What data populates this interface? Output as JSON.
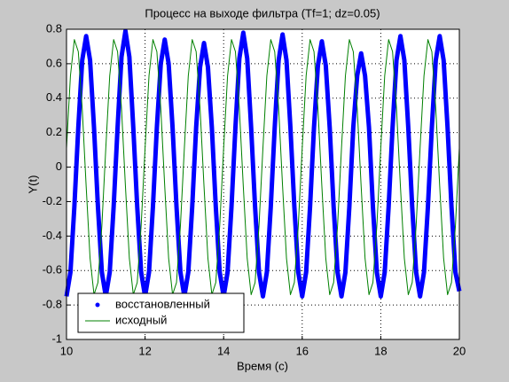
{
  "chart_data": {
    "type": "line",
    "title": "Процесс на выходе фильтра (Tf=1; dz=0.05)",
    "x_label": "Время (c)",
    "y_label": "Y(t)",
    "xlim": [
      10,
      20
    ],
    "ylim": [
      -1,
      0.8
    ],
    "xticks": [
      10,
      12,
      14,
      16,
      18,
      20
    ],
    "yticks": [
      -1,
      -0.8,
      -0.6,
      -0.4,
      -0.2,
      0,
      0.2,
      0.4,
      0.6,
      0.8
    ],
    "grid": true,
    "legend": "lower left",
    "x": [
      10,
      10.1,
      10.2,
      10.3,
      10.4,
      10.5,
      10.6,
      10.7,
      10.8,
      10.9,
      11,
      11.1,
      11.2,
      11.3,
      11.4,
      11.5,
      11.6,
      11.7,
      11.8,
      11.9,
      12,
      12.1,
      12.2,
      12.3,
      12.4,
      12.5,
      12.6,
      12.7,
      12.8,
      12.9,
      13,
      13.1,
      13.2,
      13.3,
      13.4,
      13.5,
      13.6,
      13.7,
      13.8,
      13.9,
      14,
      14.1,
      14.2,
      14.3,
      14.4,
      14.5,
      14.6,
      14.7,
      14.8,
      14.9,
      15,
      15.1,
      15.2,
      15.3,
      15.4,
      15.5,
      15.6,
      15.7,
      15.8,
      15.9,
      16,
      16.1,
      16.2,
      16.3,
      16.4,
      16.5,
      16.6,
      16.7,
      16.8,
      16.9,
      17,
      17.1,
      17.2,
      17.3,
      17.4,
      17.5,
      17.6,
      17.7,
      17.8,
      17.9,
      18,
      18.1,
      18.2,
      18.3,
      18.4,
      18.5,
      18.6,
      18.7,
      18.8,
      18.9,
      19,
      19.1,
      19.2,
      19.3,
      19.4,
      19.5,
      19.6,
      19.7,
      19.8,
      19.9,
      20
    ],
    "series": [
      {
        "name": "восстановленный",
        "color": "#0000ff",
        "marker": "dot",
        "values": [
          -0.75,
          -0.61,
          -0.23,
          0.23,
          0.62,
          0.76,
          0.62,
          0.23,
          -0.23,
          -0.61,
          -0.75,
          -0.61,
          -0.23,
          0.23,
          0.64,
          0.79,
          0.64,
          0.23,
          -0.23,
          -0.61,
          -0.75,
          -0.61,
          -0.23,
          0.23,
          0.6,
          0.74,
          0.6,
          0.23,
          -0.23,
          -0.61,
          -0.75,
          -0.61,
          -0.23,
          0.23,
          0.58,
          0.72,
          0.58,
          0.23,
          -0.23,
          -0.61,
          -0.75,
          -0.61,
          -0.23,
          0.23,
          0.63,
          0.78,
          0.63,
          0.23,
          -0.23,
          -0.61,
          -0.75,
          -0.61,
          -0.23,
          0.23,
          0.62,
          0.77,
          0.62,
          0.23,
          -0.23,
          -0.61,
          -0.75,
          -0.61,
          -0.23,
          0.23,
          0.59,
          0.73,
          0.59,
          0.23,
          -0.23,
          -0.61,
          -0.75,
          -0.61,
          -0.23,
          0.23,
          0.53,
          0.66,
          0.53,
          0.23,
          -0.23,
          -0.61,
          -0.75,
          -0.61,
          -0.23,
          0.23,
          0.62,
          0.76,
          0.62,
          0.23,
          -0.23,
          -0.61,
          -0.75,
          -0.61,
          -0.23,
          0.23,
          0.62,
          0.76,
          0.62,
          0.23,
          -0.23,
          -0.61,
          -0.72
        ]
      },
      {
        "name": "исходный",
        "color": "#008000",
        "values": [
          0.11,
          0.53,
          0.74,
          0.67,
          0.34,
          -0.11,
          -0.53,
          -0.74,
          -0.67,
          -0.34,
          0.11,
          0.53,
          0.74,
          0.67,
          0.34,
          -0.11,
          -0.53,
          -0.74,
          -0.67,
          -0.34,
          0.11,
          0.53,
          0.74,
          0.67,
          0.34,
          -0.11,
          -0.53,
          -0.74,
          -0.67,
          -0.34,
          0.11,
          0.53,
          0.74,
          0.67,
          0.34,
          -0.11,
          -0.53,
          -0.74,
          -0.67,
          -0.34,
          0.11,
          0.53,
          0.74,
          0.67,
          0.34,
          -0.11,
          -0.53,
          -0.74,
          -0.67,
          -0.34,
          0.11,
          0.53,
          0.74,
          0.67,
          0.34,
          -0.11,
          -0.53,
          -0.74,
          -0.67,
          -0.34,
          0.11,
          0.53,
          0.74,
          0.67,
          0.34,
          -0.11,
          -0.53,
          -0.74,
          -0.67,
          -0.34,
          0.11,
          0.53,
          0.74,
          0.67,
          0.34,
          -0.11,
          -0.53,
          -0.74,
          -0.67,
          -0.34,
          0.11,
          0.53,
          0.74,
          0.67,
          0.34,
          -0.11,
          -0.53,
          -0.74,
          -0.67,
          -0.34,
          0.11,
          0.53,
          0.74,
          0.67,
          0.34,
          -0.11,
          -0.53,
          -0.74,
          -0.67,
          -0.34,
          0.11
        ]
      }
    ]
  }
}
